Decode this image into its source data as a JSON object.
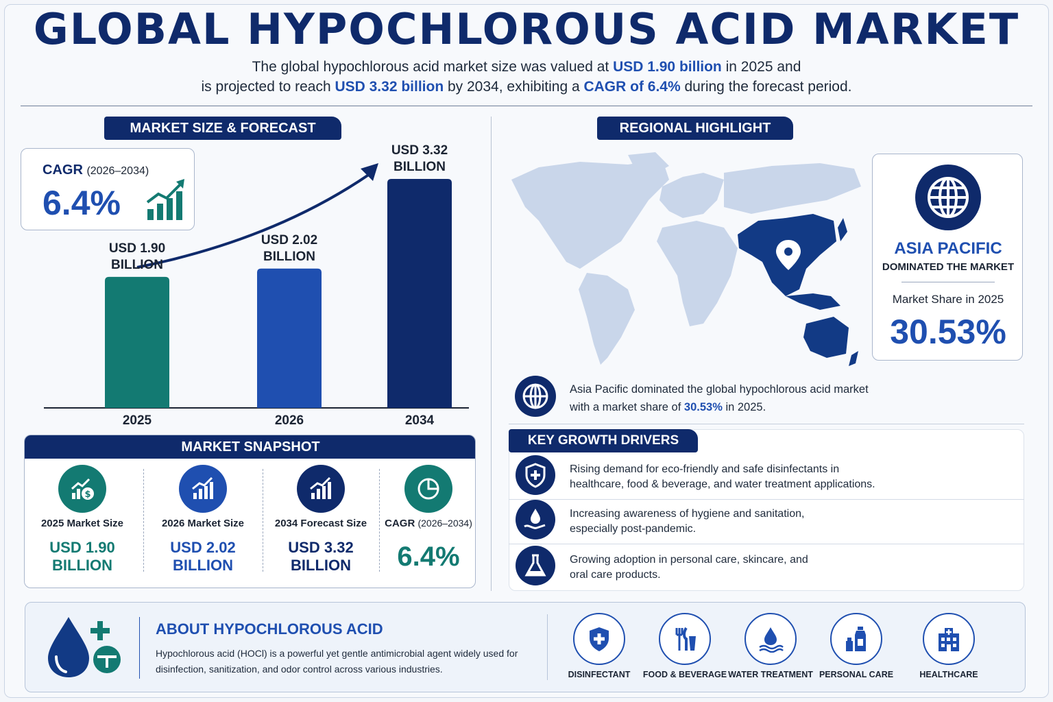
{
  "header": {
    "title": "GLOBAL HYPOCHLOROUS ACID MARKET",
    "line1_a": "The global hypochlorous acid market size was valued at ",
    "line1_b": "USD 1.90 billion",
    "line1_c": " in 2025 and",
    "line2_a": "is projected to reach ",
    "line2_b": "USD 3.32 billion",
    "line2_c": " by 2034, exhibiting a ",
    "line2_d": "CAGR of 6.4%",
    "line2_e": " during the forecast period."
  },
  "market_size": {
    "heading": "MARKET SIZE & FORECAST",
    "cagr_label": "CAGR",
    "cagr_period": "(2026–2034)",
    "cagr_value": "6.4%"
  },
  "chart_data": {
    "type": "bar",
    "categories": [
      "2025",
      "2026",
      "2034"
    ],
    "values": [
      1.9,
      2.02,
      3.32
    ],
    "value_labels": [
      [
        "USD 1.90",
        "BILLION"
      ],
      [
        "USD 2.02",
        "BILLION"
      ],
      [
        "USD 3.32",
        "BILLION"
      ]
    ],
    "colors": [
      "#137a72",
      "#1f4fb0",
      "#0f2a6b"
    ],
    "title": "",
    "xlabel": "",
    "ylabel": "",
    "grid": false
  },
  "snapshot": {
    "heading": "MARKET SNAPSHOT",
    "items": [
      {
        "label": "2025 Market Size",
        "value1": "USD 1.90",
        "value2": "BILLION",
        "color": "#137a72",
        "icon": "money-growth-icon"
      },
      {
        "label": "2026 Market Size",
        "value1": "USD 2.02",
        "value2": "BILLION",
        "color": "#1f4fb0",
        "icon": "bar-growth-icon"
      },
      {
        "label": "2034 Forecast Size",
        "value1": "USD 3.32",
        "value2": "BILLION",
        "color": "#0f2a6b",
        "icon": "bar-growth-icon"
      },
      {
        "label": "CAGR",
        "label_period": "(2026–2034)",
        "value1": "6.4%",
        "color": "#137a72",
        "icon": "pie-chart-icon"
      }
    ]
  },
  "regional": {
    "heading": "REGIONAL HIGHLIGHT",
    "region": "ASIA PACIFIC",
    "region_sub": "DOMINATED THE MARKET",
    "share_label": "Market Share in 2025",
    "share_value": "30.53%",
    "note_a": "Asia Pacific dominated the global hypochlorous acid market",
    "note_b": "with a market share of ",
    "note_c": "30.53%",
    "note_d": " in 2025."
  },
  "drivers": {
    "heading": "KEY GROWTH DRIVERS",
    "items": [
      {
        "line1": "Rising demand for eco-friendly and safe disinfectants in",
        "line2": "healthcare, food & beverage, and water treatment applications.",
        "icon": "shield-plus-icon"
      },
      {
        "line1": "Increasing awareness of hygiene and sanitation,",
        "line2": "especially post-pandemic.",
        "icon": "hand-drop-icon"
      },
      {
        "line1": "Growing adoption in personal care, skincare, and",
        "line2": "oral care products.",
        "icon": "flask-icon"
      }
    ]
  },
  "about": {
    "title": "ABOUT HYPOCHLOROUS ACID",
    "line1": "Hypochlorous acid (HOCl) is a powerful yet gentle antimicrobial agent widely used for",
    "line2": "disinfection, sanitization, and odor control across various industries."
  },
  "applications": [
    {
      "label": "DISINFECTANT",
      "icon": "shield-cross-icon"
    },
    {
      "label": "FOOD & BEVERAGE",
      "icon": "cutlery-icon"
    },
    {
      "label": "WATER TREATMENT",
      "icon": "water-drop-icon"
    },
    {
      "label": "PERSONAL CARE",
      "icon": "bottles-icon"
    },
    {
      "label": "HEALTHCARE",
      "icon": "hospital-icon"
    }
  ]
}
